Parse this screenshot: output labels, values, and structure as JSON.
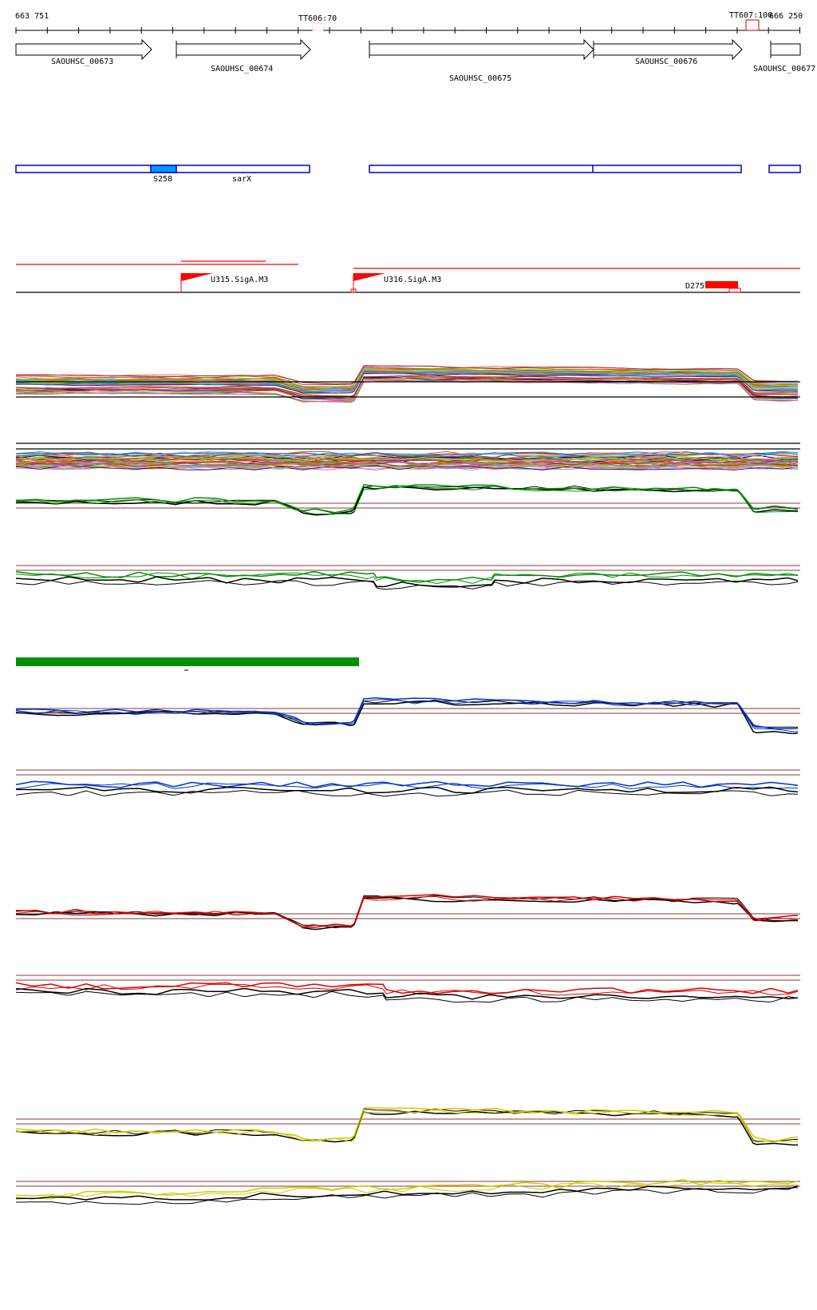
{
  "ruler": {
    "start_label": "663 751",
    "end_label": "666 250",
    "terminators": [
      {
        "label": "TT606:70",
        "color": "#ffd8d0"
      },
      {
        "label": "TT607:100",
        "color": "#c00000"
      }
    ]
  },
  "genes": [
    {
      "name": "SAOUHSC_00673"
    },
    {
      "name": "SAOUHSC_00674"
    },
    {
      "name": "SAOUHSC_00675"
    },
    {
      "name": "SAOUHSC_00676"
    },
    {
      "name": "SAOUHSC_00677"
    }
  ],
  "segments": {
    "box_color": "#0000cc",
    "highlight_color": "#0099ff",
    "labels": [
      "S258",
      "sarX"
    ]
  },
  "promoters": {
    "color": "#ff0000",
    "labels": [
      "U315.SigA.M3",
      "U316.SigA.M3",
      "D275"
    ]
  },
  "tracks": {
    "reference_line_color": "#a06060",
    "green_bar_color": "#009000",
    "series_colors": {
      "green": "#009000",
      "blue": "#0033cc",
      "red": "#dd0000",
      "yellow": "#cccc00",
      "black": "#000000"
    },
    "multi_palette": [
      "#e05030",
      "#808000",
      "#a0c020",
      "#c02080",
      "#000080",
      "#ff8040",
      "#60c0ff",
      "#b0a0d0",
      "#804040",
      "#40a040",
      "#ff60a0",
      "#c08000",
      "#8080ff",
      "#a03000",
      "#60ff00",
      "#600060",
      "#d0a060",
      "#2080c0",
      "#ff3030",
      "#909090"
    ]
  }
}
